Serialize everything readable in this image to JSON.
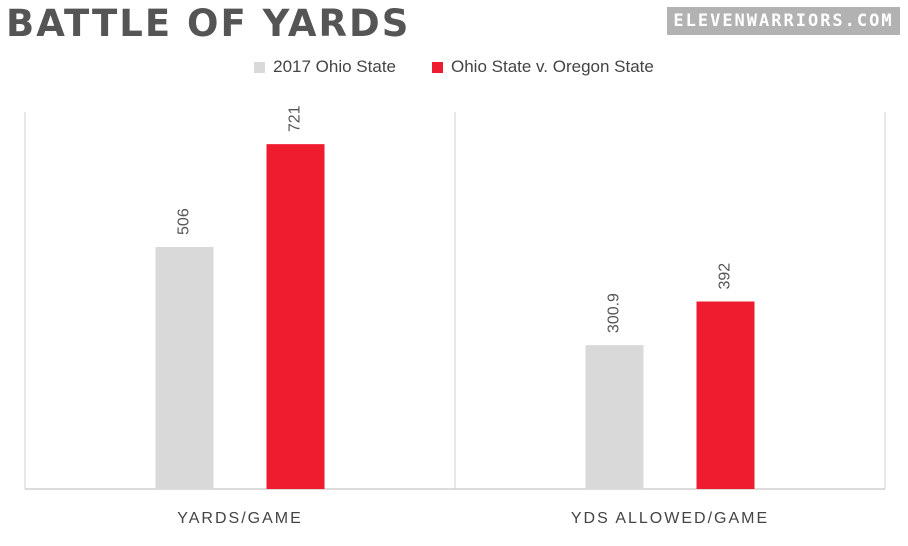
{
  "title": "BATTLE OF YARDS",
  "brand": "ELEVENWARRIORS.COM",
  "colors": {
    "series1": "#d9d9d9",
    "series2": "#ee1c2e",
    "text": "#555555",
    "axis": "#d0d0d0"
  },
  "chart_data": {
    "type": "bar",
    "title": "BATTLE OF YARDS",
    "categories": [
      "YARDS/GAME",
      "YDS ALLOWED/GAME"
    ],
    "series": [
      {
        "name": "2017 Ohio State",
        "values": [
          506,
          300.9
        ],
        "labels": [
          "506",
          "300.9"
        ]
      },
      {
        "name": "Ohio State v. Oregon State",
        "values": [
          721,
          392
        ],
        "labels": [
          "721",
          "392"
        ]
      }
    ],
    "ylim": [
      0,
      800
    ],
    "grid": false,
    "legend": "top-center"
  }
}
